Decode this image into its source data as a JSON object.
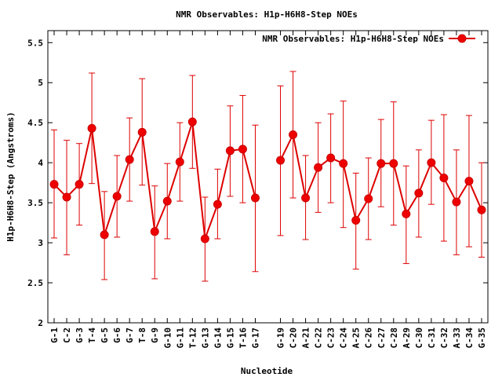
{
  "chart_data": {
    "type": "line",
    "title": "NMR Observables: H1p-H6H8-Step NOEs",
    "xlabel": "Nucleotide",
    "ylabel": "H1p-H6H8-Step (Angstroms)",
    "ylim": [
      2,
      5.65
    ],
    "yticks": [
      "2",
      "2.5",
      "3",
      "3.5",
      "4",
      "4.5",
      "5",
      "5.5"
    ],
    "grid": false,
    "legend_position": "top-right",
    "series_color": "#dd0000",
    "categories": [
      "G-1",
      "C-2",
      "G-3",
      "T-4",
      "G-5",
      "G-6",
      "G-7",
      "T-8",
      "G-9",
      "G-10",
      "G-11",
      "T-12",
      "G-13",
      "G-14",
      "G-15",
      "T-16",
      "G-17",
      "G-19",
      "C-20",
      "A-21",
      "C-22",
      "C-23",
      "C-24",
      "A-25",
      "C-26",
      "C-27",
      "C-28",
      "A-29",
      "C-30",
      "C-31",
      "C-32",
      "A-33",
      "C-34",
      "G-35"
    ],
    "x_positions": [
      1,
      2,
      3,
      4,
      5,
      6,
      7,
      8,
      9,
      10,
      11,
      12,
      13,
      14,
      15,
      16,
      17,
      19,
      20,
      21,
      22,
      23,
      24,
      25,
      26,
      27,
      28,
      29,
      30,
      31,
      32,
      33,
      34,
      35
    ],
    "series": [
      {
        "name": "NMR Observables: H1p-H6H8-Step NOEs",
        "segments": [
          [
            0,
            16
          ],
          [
            17,
            33
          ]
        ],
        "values": [
          3.73,
          3.57,
          3.73,
          4.43,
          3.1,
          3.58,
          4.04,
          4.38,
          3.14,
          3.52,
          4.01,
          4.51,
          3.05,
          3.48,
          4.15,
          4.17,
          3.56,
          4.03,
          4.35,
          3.56,
          3.94,
          4.06,
          3.99,
          3.28,
          3.55,
          3.99,
          3.99,
          3.36,
          3.62,
          4.0,
          3.81,
          3.51,
          3.77,
          3.41
        ],
        "error_low": [
          3.06,
          2.85,
          3.22,
          3.74,
          2.54,
          3.07,
          3.52,
          3.72,
          2.55,
          3.05,
          3.52,
          3.93,
          2.52,
          3.05,
          3.58,
          3.5,
          2.64,
          3.09,
          3.56,
          3.04,
          3.38,
          3.5,
          3.19,
          2.67,
          3.04,
          3.45,
          3.22,
          2.74,
          3.07,
          3.48,
          3.02,
          2.85,
          2.95,
          2.82
        ],
        "error_high": [
          4.41,
          4.28,
          4.24,
          5.12,
          3.64,
          4.09,
          4.56,
          5.05,
          3.71,
          3.99,
          4.5,
          5.09,
          3.57,
          3.92,
          4.71,
          4.84,
          4.47,
          4.96,
          5.14,
          4.09,
          4.5,
          4.61,
          4.77,
          3.87,
          4.06,
          4.54,
          4.76,
          3.96,
          4.16,
          4.53,
          4.6,
          4.16,
          4.59,
          4.0
        ]
      }
    ]
  }
}
